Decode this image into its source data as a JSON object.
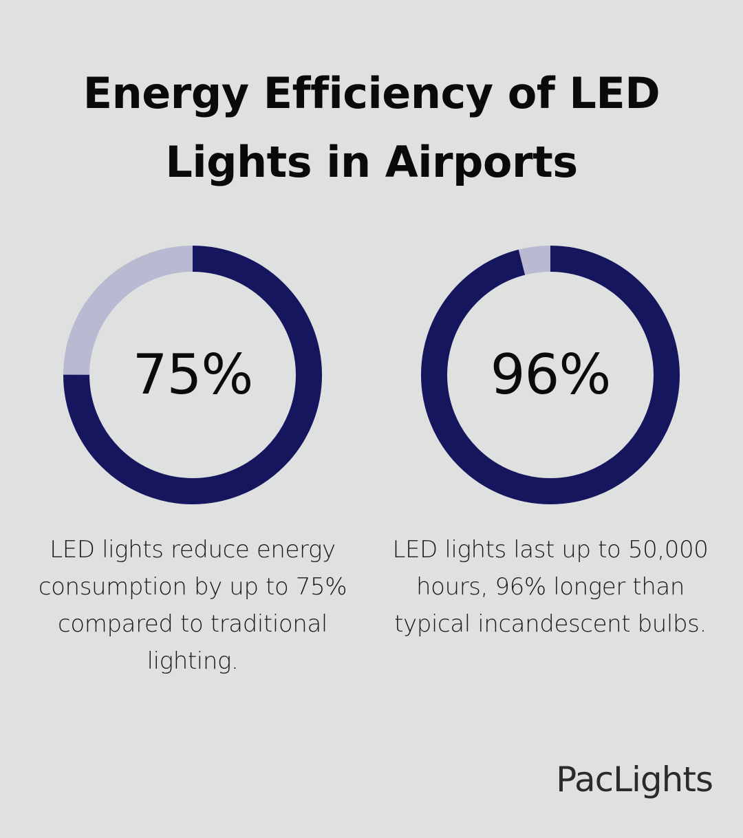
{
  "title": "Energy Efficiency of LED Lights in Airports",
  "colors": {
    "background": "#dfe1e1",
    "accent": "#16165e",
    "remainder": "#b9bad1",
    "text": "#0a0a0a"
  },
  "chart_data": [
    {
      "type": "pie",
      "style": "donut",
      "value": 75,
      "max": 100,
      "label": "75%",
      "caption": "LED lights reduce energy consumption by up to 75% compared to traditional lighting."
    },
    {
      "type": "pie",
      "style": "donut",
      "value": 96,
      "max": 100,
      "label": "96%",
      "caption": "LED lights last up to 50,000 hours, 96% longer than typical incandescent bulbs."
    }
  ],
  "brand": "PacLights"
}
